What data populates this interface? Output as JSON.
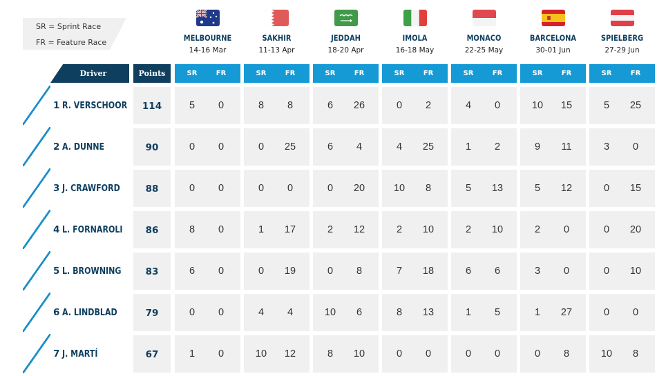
{
  "legend": {
    "sr": "SR = Sprint Race",
    "fr": "FR = Feature Race"
  },
  "headers": {
    "driver": "Driver",
    "points": "Points",
    "sr": "SR",
    "fr": "FR"
  },
  "venues": [
    {
      "name": "MELBOURNE",
      "dates": "14-16 Mar",
      "flag": "australia-flag-icon"
    },
    {
      "name": "SAKHIR",
      "dates": "11-13 Apr",
      "flag": "bahrain-flag-icon"
    },
    {
      "name": "JEDDAH",
      "dates": "18-20 Apr",
      "flag": "saudi-arabia-flag-icon"
    },
    {
      "name": "IMOLA",
      "dates": "16-18 May",
      "flag": "italy-flag-icon"
    },
    {
      "name": "MONACO",
      "dates": "22-25 May",
      "flag": "monaco-flag-icon"
    },
    {
      "name": "BARCELONA",
      "dates": "30-01 Jun",
      "flag": "spain-flag-icon"
    },
    {
      "name": "SPIELBERG",
      "dates": "27-29 Jun",
      "flag": "austria-flag-icon"
    }
  ],
  "drivers": [
    {
      "pos": "1",
      "name": "R. VERSCHOOR",
      "points": "114",
      "results": [
        [
          "5",
          "0"
        ],
        [
          "8",
          "8"
        ],
        [
          "6",
          "26"
        ],
        [
          "0",
          "2"
        ],
        [
          "4",
          "0"
        ],
        [
          "10",
          "15"
        ],
        [
          "5",
          "25"
        ]
      ]
    },
    {
      "pos": "2",
      "name": "A. DUNNE",
      "points": "90",
      "results": [
        [
          "0",
          "0"
        ],
        [
          "0",
          "25"
        ],
        [
          "6",
          "4"
        ],
        [
          "4",
          "25"
        ],
        [
          "1",
          "2"
        ],
        [
          "9",
          "11"
        ],
        [
          "3",
          "0"
        ]
      ]
    },
    {
      "pos": "3",
      "name": "J. CRAWFORD",
      "points": "88",
      "results": [
        [
          "0",
          "0"
        ],
        [
          "0",
          "0"
        ],
        [
          "0",
          "20"
        ],
        [
          "10",
          "8"
        ],
        [
          "5",
          "13"
        ],
        [
          "5",
          "12"
        ],
        [
          "0",
          "15"
        ]
      ]
    },
    {
      "pos": "4",
      "name": "L. FORNAROLI",
      "points": "86",
      "results": [
        [
          "8",
          "0"
        ],
        [
          "1",
          "17"
        ],
        [
          "2",
          "12"
        ],
        [
          "2",
          "10"
        ],
        [
          "2",
          "10"
        ],
        [
          "2",
          "0"
        ],
        [
          "0",
          "20"
        ]
      ]
    },
    {
      "pos": "5",
      "name": "L. BROWNING",
      "points": "83",
      "results": [
        [
          "6",
          "0"
        ],
        [
          "0",
          "19"
        ],
        [
          "0",
          "8"
        ],
        [
          "7",
          "18"
        ],
        [
          "6",
          "6"
        ],
        [
          "3",
          "0"
        ],
        [
          "0",
          "10"
        ]
      ]
    },
    {
      "pos": "6",
      "name": "A. LINDBLAD",
      "points": "79",
      "results": [
        [
          "0",
          "0"
        ],
        [
          "4",
          "4"
        ],
        [
          "10",
          "6"
        ],
        [
          "8",
          "13"
        ],
        [
          "1",
          "5"
        ],
        [
          "1",
          "27"
        ],
        [
          "0",
          "0"
        ]
      ]
    },
    {
      "pos": "7",
      "name": "J. MARTÍ",
      "points": "67",
      "results": [
        [
          "1",
          "0"
        ],
        [
          "10",
          "12"
        ],
        [
          "8",
          "10"
        ],
        [
          "0",
          "0"
        ],
        [
          "0",
          "0"
        ],
        [
          "0",
          "8"
        ],
        [
          "10",
          "8"
        ]
      ]
    }
  ],
  "colors": {
    "navy": "#0f3f5f",
    "blue": "#159ad6",
    "cell": "#f0f0f0"
  }
}
